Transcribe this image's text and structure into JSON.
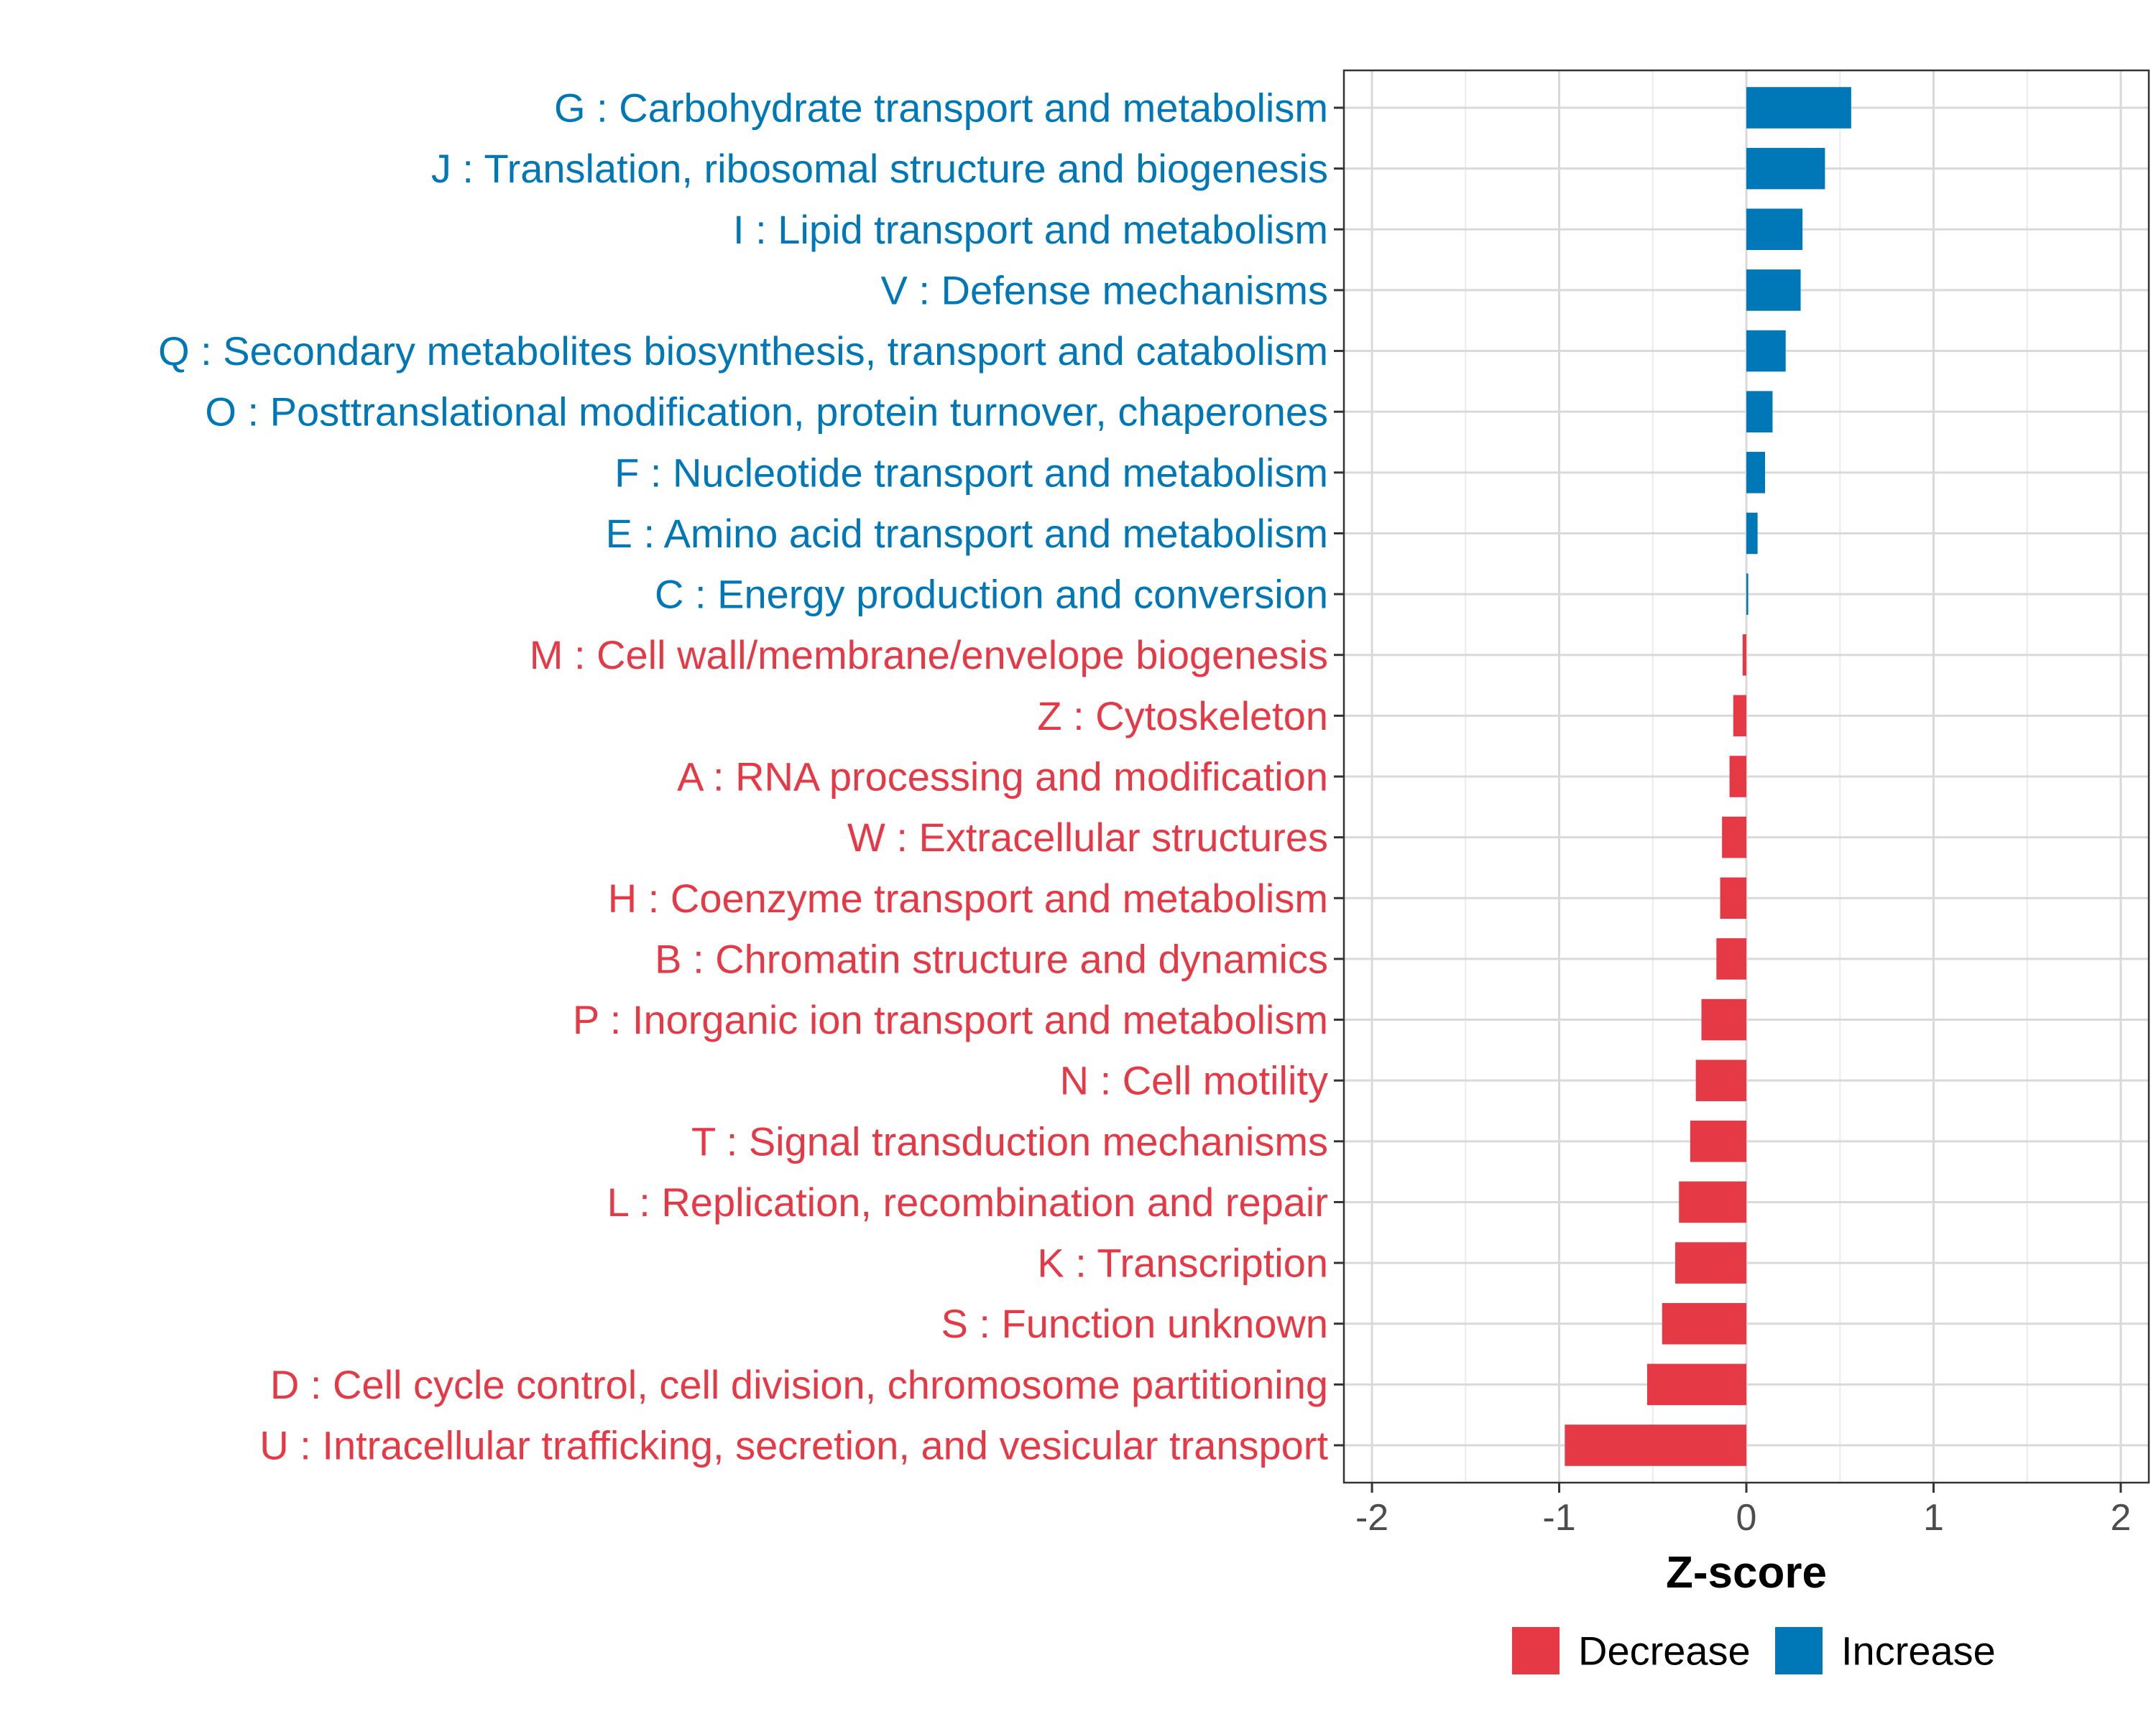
{
  "chart_data": {
    "type": "bar",
    "orientation": "horizontal",
    "title": "",
    "xlabel": "Z-score",
    "ylabel": "",
    "xlim": [
      -2.15,
      2.15
    ],
    "xticks": [
      -2,
      -1,
      0,
      1,
      2
    ],
    "xtick_labels": [
      "-2",
      "-1",
      "0",
      "1",
      "2"
    ],
    "grid": true,
    "legend_position": "bottom",
    "colors": {
      "Decrease": "#e63946",
      "Increase": "#0077b6"
    },
    "legend": [
      {
        "label": "Decrease",
        "color": "#e63946"
      },
      {
        "label": "Increase",
        "color": "#0077b6"
      }
    ],
    "categories": [
      "G : Carbohydrate transport and metabolism",
      "J : Translation, ribosomal structure and biogenesis",
      "I : Lipid transport and metabolism",
      "V : Defense mechanisms",
      "Q : Secondary metabolites biosynthesis, transport and catabolism",
      "O : Posttranslational modification, protein turnover, chaperones",
      "F : Nucleotide transport and metabolism",
      "E : Amino acid transport and metabolism",
      "C : Energy production and conversion",
      "M : Cell wall/membrane/envelope biogenesis",
      "Z : Cytoskeleton",
      "A : RNA processing and modification",
      "W : Extracellular structures",
      "H : Coenzyme transport and metabolism",
      "B : Chromatin structure and dynamics",
      "P : Inorganic ion transport and metabolism",
      "N : Cell motility",
      "T : Signal transduction mechanisms",
      "L : Replication, recombination and repair",
      "K : Transcription",
      "S : Function unknown",
      "D : Cell cycle control, cell division, chromosome partitioning",
      "U : Intracellular trafficking, secretion, and vesicular transport"
    ],
    "values": [
      0.56,
      0.42,
      0.3,
      0.29,
      0.21,
      0.14,
      0.1,
      0.06,
      0.01,
      -0.02,
      -0.07,
      -0.09,
      -0.13,
      -0.14,
      -0.16,
      -0.24,
      -0.27,
      -0.3,
      -0.36,
      -0.38,
      -0.45,
      -0.53,
      -0.97
    ],
    "groups": [
      "Increase",
      "Increase",
      "Increase",
      "Increase",
      "Increase",
      "Increase",
      "Increase",
      "Increase",
      "Increase",
      "Decrease",
      "Decrease",
      "Decrease",
      "Decrease",
      "Decrease",
      "Decrease",
      "Decrease",
      "Decrease",
      "Decrease",
      "Decrease",
      "Decrease",
      "Decrease",
      "Decrease",
      "Decrease"
    ]
  }
}
